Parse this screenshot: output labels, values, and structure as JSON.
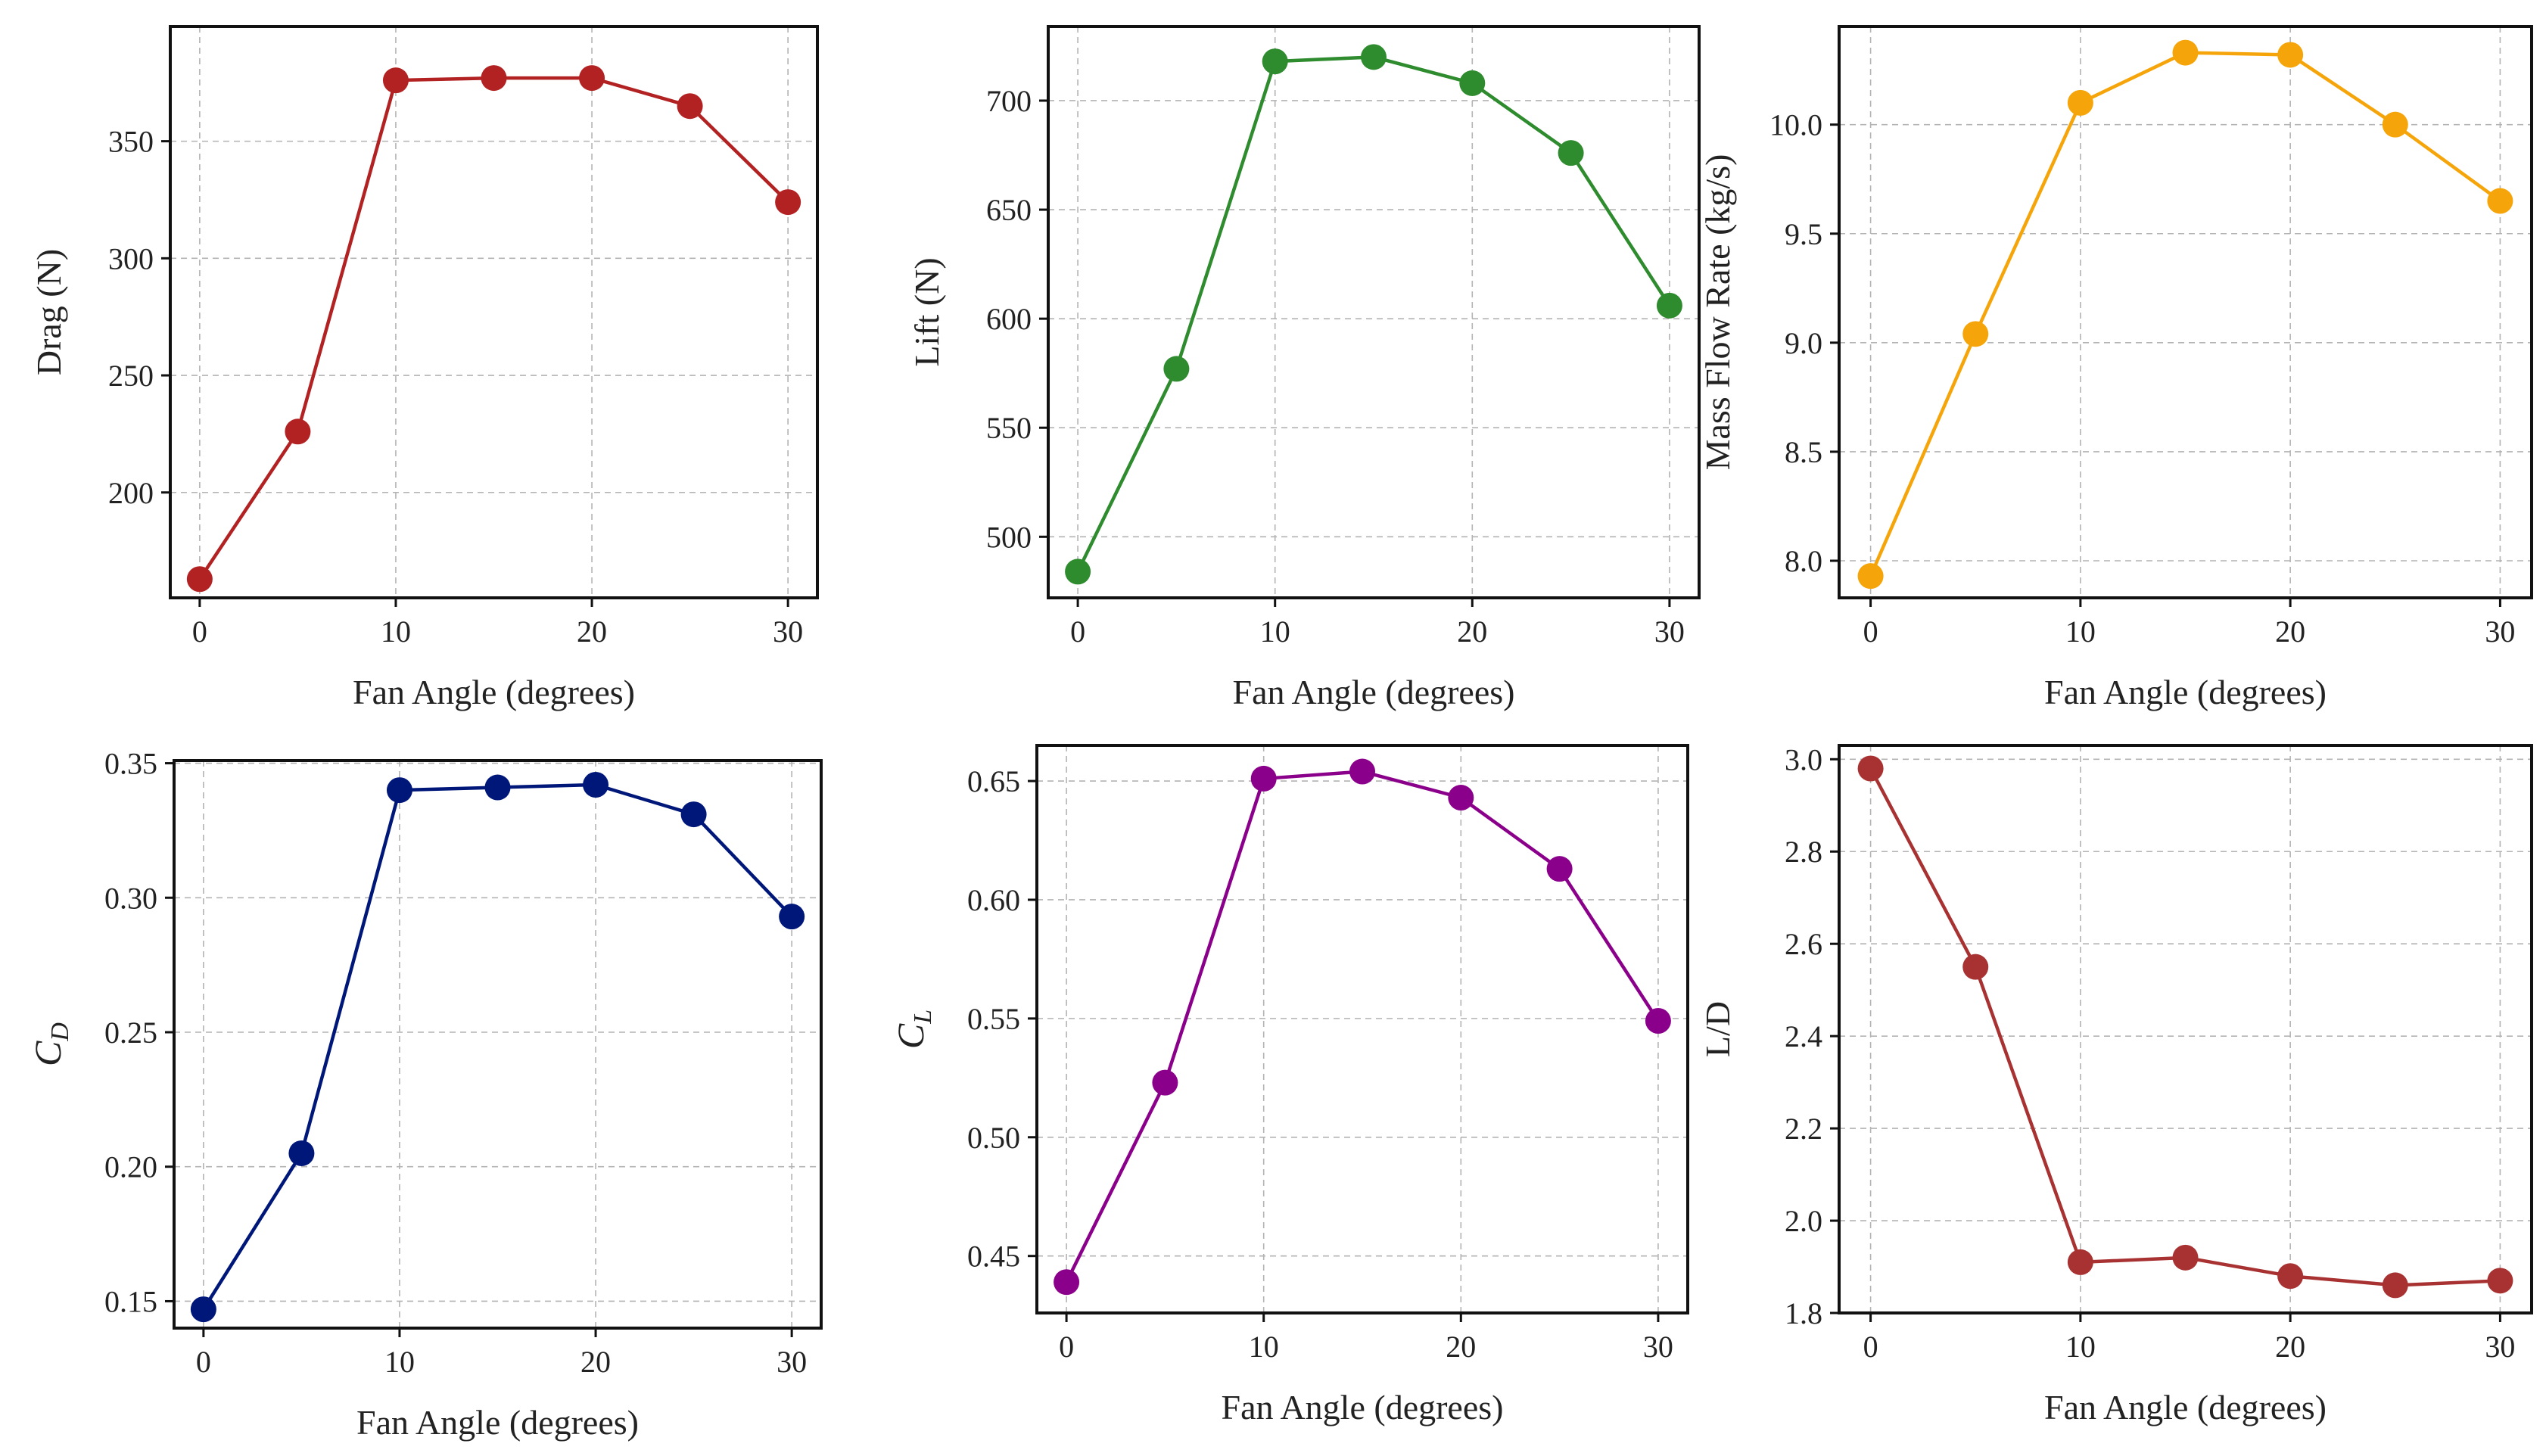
{
  "chart_data": [
    {
      "id": "drag",
      "type": "line",
      "xlabel": "Fan Angle (degrees)",
      "ylabel": "Drag (N)",
      "color": "#b22222",
      "x": [
        0,
        5,
        10,
        15,
        20,
        25,
        30
      ],
      "y": [
        163,
        226,
        376,
        377,
        377,
        365,
        324
      ],
      "xlim": [
        -1.5,
        31.5
      ],
      "ylim": [
        155,
        399
      ],
      "xticks": [
        0,
        10,
        20,
        30
      ],
      "yticks": [
        200,
        250,
        300,
        350
      ],
      "ytick_labels": [
        "200",
        "250",
        "300",
        "350"
      ],
      "grid": true
    },
    {
      "id": "lift",
      "type": "line",
      "xlabel": "Fan Angle (degrees)",
      "ylabel": "Lift (N)",
      "color": "#2e8b2e",
      "x": [
        0,
        5,
        10,
        15,
        20,
        25,
        30
      ],
      "y": [
        484,
        577,
        718,
        720,
        708,
        676,
        606
      ],
      "xlim": [
        -1.5,
        31.5
      ],
      "ylim": [
        472,
        734
      ],
      "xticks": [
        0,
        10,
        20,
        30
      ],
      "yticks": [
        500,
        550,
        600,
        650,
        700
      ],
      "ytick_labels": [
        "500",
        "550",
        "600",
        "650",
        "700"
      ],
      "grid": true
    },
    {
      "id": "mass-flow",
      "type": "line",
      "xlabel": "Fan Angle (degrees)",
      "ylabel": "Mass Flow Rate (kg/s)",
      "color": "#f5a50a",
      "x": [
        0,
        5,
        10,
        15,
        20,
        25,
        30
      ],
      "y": [
        7.93,
        9.04,
        10.1,
        10.33,
        10.32,
        10.0,
        9.65
      ],
      "xlim": [
        -1.5,
        31.5
      ],
      "ylim": [
        7.83,
        10.45
      ],
      "xticks": [
        0,
        10,
        20,
        30
      ],
      "yticks": [
        8.0,
        8.5,
        9.0,
        9.5,
        10.0
      ],
      "ytick_labels": [
        "8.0",
        "8.5",
        "9.0",
        "9.5",
        "10.0"
      ],
      "grid": true
    },
    {
      "id": "cd",
      "type": "line",
      "xlabel": "Fan Angle (degrees)",
      "ylabel": "C",
      "ylabel_sub": "D",
      "color": "#00177a",
      "x": [
        0,
        5,
        10,
        15,
        20,
        25,
        30
      ],
      "y": [
        0.147,
        0.205,
        0.34,
        0.341,
        0.342,
        0.331,
        0.293
      ],
      "xlim": [
        -1.5,
        31.5
      ],
      "ylim": [
        0.14,
        0.351
      ],
      "xticks": [
        0,
        10,
        20,
        30
      ],
      "yticks": [
        0.15,
        0.2,
        0.25,
        0.3,
        0.35
      ],
      "ytick_labels": [
        "0.15",
        "0.20",
        "0.25",
        "0.30",
        "0.35"
      ],
      "grid": true
    },
    {
      "id": "cl",
      "type": "line",
      "xlabel": "Fan Angle (degrees)",
      "ylabel": "C",
      "ylabel_sub": "L",
      "color": "#8b008b",
      "x": [
        0,
        5,
        10,
        15,
        20,
        25,
        30
      ],
      "y": [
        0.439,
        0.523,
        0.651,
        0.654,
        0.643,
        0.613,
        0.549
      ],
      "xlim": [
        -1.5,
        31.5
      ],
      "ylim": [
        0.426,
        0.665
      ],
      "xticks": [
        0,
        10,
        20,
        30
      ],
      "yticks": [
        0.45,
        0.5,
        0.55,
        0.6,
        0.65
      ],
      "ytick_labels": [
        "0.45",
        "0.50",
        "0.55",
        "0.60",
        "0.65"
      ],
      "grid": true
    },
    {
      "id": "ld",
      "type": "line",
      "xlabel": "Fan Angle (degrees)",
      "ylabel": "L/D",
      "color": "#a83232",
      "x": [
        0,
        5,
        10,
        15,
        20,
        25,
        30
      ],
      "y": [
        2.98,
        2.55,
        1.91,
        1.92,
        1.88,
        1.86,
        1.87
      ],
      "xlim": [
        -1.5,
        31.5
      ],
      "ylim": [
        1.8,
        3.03
      ],
      "xticks": [
        0,
        10,
        20,
        30
      ],
      "yticks": [
        1.8,
        2.0,
        2.2,
        2.4,
        2.6,
        2.8,
        3.0
      ],
      "ytick_labels": [
        "1.8",
        "2.0",
        "2.2",
        "2.4",
        "2.6",
        "2.8",
        "3.0"
      ],
      "grid": true
    }
  ]
}
